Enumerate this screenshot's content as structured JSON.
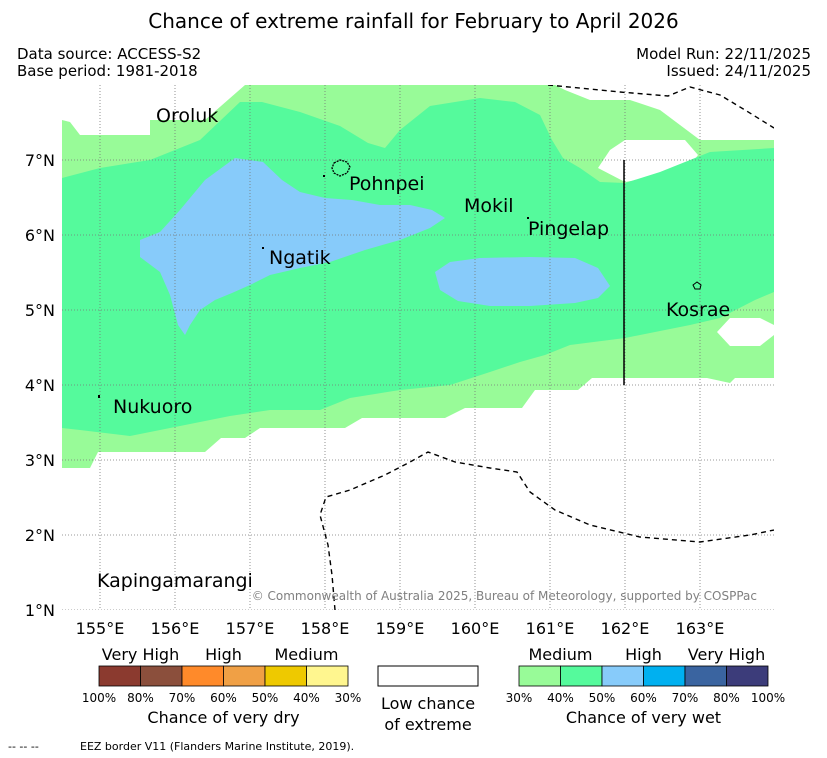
{
  "title": "Chance of extreme rainfall for February to April 2026",
  "meta": {
    "data_source": "Data source: ACCESS-S2",
    "base_period": "Base period: 1981-2018",
    "model_run": "Model Run: 22/11/2025",
    "issued": "Issued: 24/11/2025"
  },
  "map": {
    "lon_ticks": [
      "155°E",
      "156°E",
      "157°E",
      "158°E",
      "159°E",
      "160°E",
      "161°E",
      "162°E",
      "163°E"
    ],
    "lat_ticks": [
      "7°N",
      "6°N",
      "5°N",
      "4°N",
      "3°N",
      "2°N",
      "1°N"
    ],
    "places": {
      "oroluk": "Oroluk",
      "pohnpei": "Pohnpei",
      "mokil": "Mokil",
      "pingelap": "Pingelap",
      "ngatik": "Ngatik",
      "kosrae": "Kosrae",
      "nukuoro": "Nukuoro",
      "kapingamarangi": "Kapingamarangi"
    },
    "copyright": "© Commonwealth of Australia 2025, Bureau of Meteorology, supported by COSPPac",
    "colors": {
      "wet_medium": "#98fb98",
      "wet_medium_high": "#55fa9c",
      "wet_high": "#87cbfa",
      "low_chance": "#ffffff"
    }
  },
  "legend": {
    "dry": {
      "groups": [
        "Very High",
        "High",
        "Medium"
      ],
      "colors": [
        "#8b3a2f",
        "#8b4f3c",
        "#ff8a2a",
        "#f0a045",
        "#eec900",
        "#fff68f"
      ],
      "ticks": [
        "100%",
        "80%",
        "70%",
        "60%",
        "50%",
        "40%",
        "30%"
      ],
      "caption": "Chance of very dry"
    },
    "low": {
      "color": "#ffffff",
      "caption_line1": "Low chance",
      "caption_line2": "of extreme"
    },
    "wet": {
      "groups": [
        "Medium",
        "High",
        "Very High"
      ],
      "colors": [
        "#98fb98",
        "#55fa9c",
        "#87cbfa",
        "#00b0f0",
        "#3a64a0",
        "#3c3c7a"
      ],
      "ticks": [
        "30%",
        "40%",
        "50%",
        "60%",
        "70%",
        "80%",
        "100%"
      ],
      "caption": "Chance of very wet"
    }
  },
  "footer": {
    "eez_symbol": "-- -- --",
    "eez_text": "EEZ border V11 (Flanders Marine Institute, 2019)."
  }
}
